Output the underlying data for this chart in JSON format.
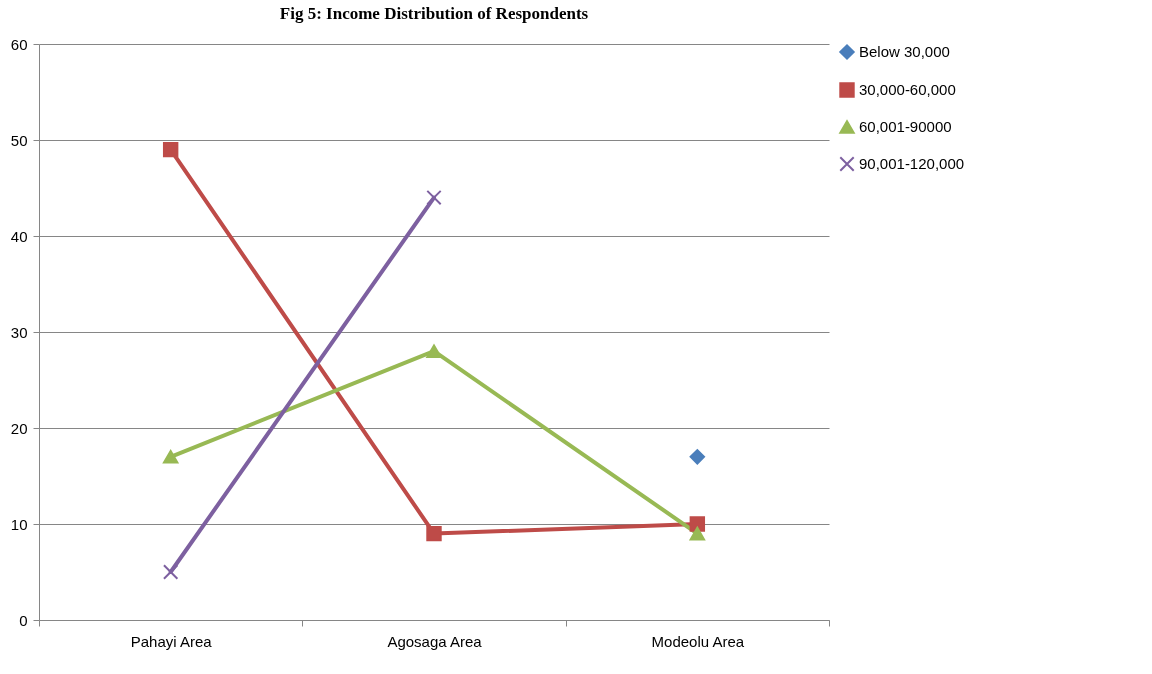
{
  "chart_data": {
    "type": "line",
    "title": "Fig 5: Income Distribution of Respondents",
    "categories": [
      "Pahayi Area",
      "Agosaga Area",
      "Modeolu Area"
    ],
    "series": [
      {
        "name": "Below 30,000",
        "color": "#4a7ebb",
        "marker": "diamond",
        "values": [
          null,
          null,
          17
        ]
      },
      {
        "name": "30,000-60,000",
        "color": "#be4b48",
        "marker": "square",
        "values": [
          49,
          9,
          10
        ]
      },
      {
        "name": "60,001-90000",
        "color": "#98b954",
        "marker": "triangle",
        "values": [
          17,
          28,
          9
        ]
      },
      {
        "name": "90,001-120,000",
        "color": "#7d60a0",
        "marker": "cross",
        "values": [
          5,
          44,
          null
        ]
      }
    ],
    "ylim": [
      0,
      60
    ],
    "yticks": [
      0,
      10,
      20,
      30,
      40,
      50,
      60
    ],
    "grid": "y",
    "legend": "right"
  }
}
